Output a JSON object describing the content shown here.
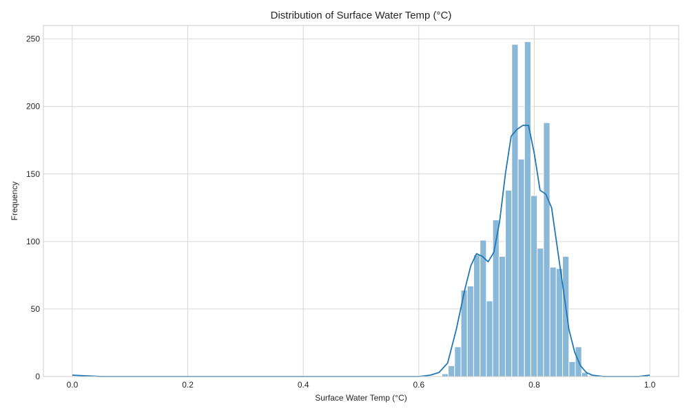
{
  "chart_data": {
    "type": "histogram",
    "title": "Distribution of Surface Water Temp (°C)",
    "xlabel": "Surface Water Temp (°C)",
    "ylabel": "Frequency",
    "xlim": [
      -0.05,
      1.05
    ],
    "ylim": [
      0,
      260
    ],
    "x_ticks": [
      "0.0",
      "0.2",
      "0.4",
      "0.6",
      "0.8",
      "1.0"
    ],
    "x_tick_values": [
      0.0,
      0.2,
      0.4,
      0.6,
      0.8,
      1.0
    ],
    "y_ticks": [
      "0",
      "50",
      "100",
      "150",
      "200",
      "250"
    ],
    "y_tick_values": [
      0,
      50,
      100,
      150,
      200,
      250
    ],
    "grid": true,
    "bin_width": 0.011,
    "bins": [
      {
        "x0": 0.64,
        "count": 2
      },
      {
        "x0": 0.651,
        "count": 8
      },
      {
        "x0": 0.662,
        "count": 22
      },
      {
        "x0": 0.673,
        "count": 64
      },
      {
        "x0": 0.684,
        "count": 67
      },
      {
        "x0": 0.695,
        "count": 90
      },
      {
        "x0": 0.706,
        "count": 101
      },
      {
        "x0": 0.717,
        "count": 56
      },
      {
        "x0": 0.728,
        "count": 116
      },
      {
        "x0": 0.739,
        "count": 89
      },
      {
        "x0": 0.75,
        "count": 138
      },
      {
        "x0": 0.761,
        "count": 246
      },
      {
        "x0": 0.772,
        "count": 161
      },
      {
        "x0": 0.783,
        "count": 248
      },
      {
        "x0": 0.794,
        "count": 134
      },
      {
        "x0": 0.805,
        "count": 95
      },
      {
        "x0": 0.816,
        "count": 188
      },
      {
        "x0": 0.827,
        "count": 81
      },
      {
        "x0": 0.838,
        "count": 80
      },
      {
        "x0": 0.849,
        "count": 89
      },
      {
        "x0": 0.86,
        "count": 11
      },
      {
        "x0": 0.871,
        "count": 22
      },
      {
        "x0": 0.882,
        "count": 3
      }
    ],
    "kde": [
      [
        0.0,
        1
      ],
      [
        0.05,
        0
      ],
      [
        0.55,
        0
      ],
      [
        0.6,
        0
      ],
      [
        0.62,
        1
      ],
      [
        0.635,
        3
      ],
      [
        0.65,
        10
      ],
      [
        0.665,
        35
      ],
      [
        0.68,
        65
      ],
      [
        0.69,
        82
      ],
      [
        0.7,
        91
      ],
      [
        0.71,
        89
      ],
      [
        0.72,
        85
      ],
      [
        0.73,
        92
      ],
      [
        0.74,
        115
      ],
      [
        0.75,
        150
      ],
      [
        0.76,
        178
      ],
      [
        0.77,
        183
      ],
      [
        0.78,
        186
      ],
      [
        0.79,
        186
      ],
      [
        0.8,
        165
      ],
      [
        0.81,
        138
      ],
      [
        0.82,
        135
      ],
      [
        0.83,
        125
      ],
      [
        0.84,
        95
      ],
      [
        0.85,
        65
      ],
      [
        0.86,
        35
      ],
      [
        0.87,
        18
      ],
      [
        0.88,
        8
      ],
      [
        0.89,
        3
      ],
      [
        0.9,
        1
      ],
      [
        0.92,
        0
      ],
      [
        0.98,
        0
      ],
      [
        1.0,
        1
      ]
    ],
    "colors": {
      "bar_fill": "#8ab8d9",
      "bar_edge": "#ffffff",
      "kde_line": "#1f77b4",
      "grid": "#d6d6d6",
      "frame": "#cccccc"
    }
  }
}
